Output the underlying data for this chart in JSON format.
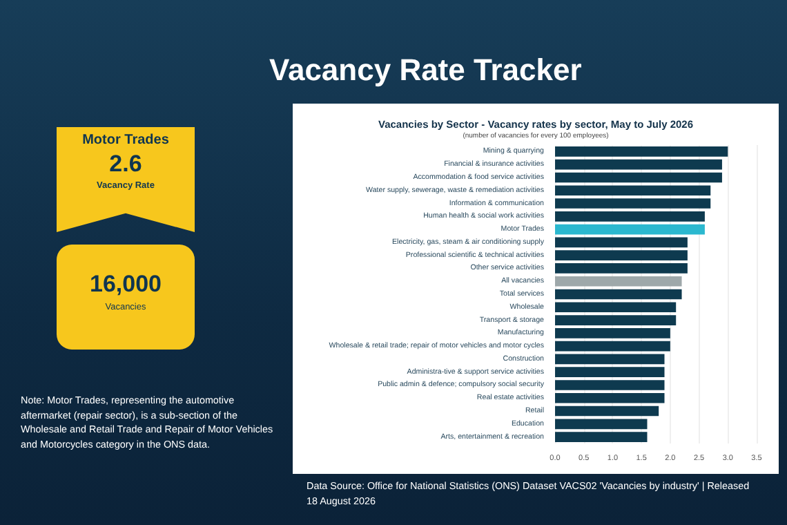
{
  "chart_data": [
    {
      "type": "other",
      "title": "Motor Trades",
      "annotations": [
        "Vacancy Rate Tracker",
        "2.6",
        "Vacancy Rate",
        "16,000",
        "Vacancies",
        "Note: Motor Trades, representing the automotive aftermarket (repair sector), is a sub-section of the Wholesale and Retail Trade and Repair of Motor Vehicles and Motorcycles category in the ONS data."
      ]
    },
    {
      "type": "bar",
      "orientation": "horizontal",
      "title": "Vacancies by Sector - Vacancy rates by sector, May to July 2026",
      "subtitle": "(number of vacancies for every 100 employees)",
      "categories": [
        "Mining & quarrying",
        "Financial & insurance activities",
        "Accommodation & food service activities",
        "Water supply, sewerage, waste & remediation activities",
        "Information & communication",
        "Human health & social work activities",
        "Motor Trades",
        "Electricity, gas, steam & air conditioning supply",
        "Professional scientific & technical activities",
        "Other service activities",
        "All vacancies",
        "Total services",
        "Wholesale",
        "Transport & storage",
        "Manufacturing",
        "Wholesale & retail trade; repair of motor vehicles and motor cycles",
        "Construction",
        "Administra-tive & support service activities",
        "Public admin & defence; compulsory social security",
        "Real estate activities",
        "Retail",
        "Education",
        "Arts, entertainment & recreation"
      ],
      "values": [
        3.0,
        2.9,
        2.9,
        2.7,
        2.7,
        2.6,
        2.6,
        2.3,
        2.3,
        2.3,
        2.2,
        2.2,
        2.1,
        2.1,
        2.0,
        2.0,
        1.9,
        1.9,
        1.9,
        1.9,
        1.8,
        1.6,
        1.6
      ],
      "colors": [
        "#0e3a4f",
        "#0e3a4f",
        "#0e3a4f",
        "#0e3a4f",
        "#0e3a4f",
        "#0e3a4f",
        "#2bb8cf",
        "#0e3a4f",
        "#0e3a4f",
        "#0e3a4f",
        "#9ea8aa",
        "#0e3a4f",
        "#0e3a4f",
        "#0e3a4f",
        "#0e3a4f",
        "#0e3a4f",
        "#0e3a4f",
        "#0e3a4f",
        "#0e3a4f",
        "#0e3a4f",
        "#0e3a4f",
        "#0e3a4f",
        "#0e3a4f"
      ],
      "xlim": [
        0,
        3.5
      ],
      "xticks": [
        {
          "value": 0,
          "label": "0.0"
        },
        {
          "value": 0.5,
          "label": "0.5"
        },
        {
          "value": 1,
          "label": "1.0"
        },
        {
          "value": 1.5,
          "label": "1.5"
        },
        {
          "value": 2,
          "label": "2.0"
        },
        {
          "value": 2.5,
          "label": "2.5"
        },
        {
          "value": 3,
          "label": "3.0"
        },
        {
          "value": 3.5,
          "label": "3.5"
        }
      ],
      "grid": "x",
      "annotations": [
        "Data Source: Office for National Statistics (ONS) Dataset VACS02 'Vacancies by industry' | Released 18 August 2026"
      ]
    }
  ]
}
